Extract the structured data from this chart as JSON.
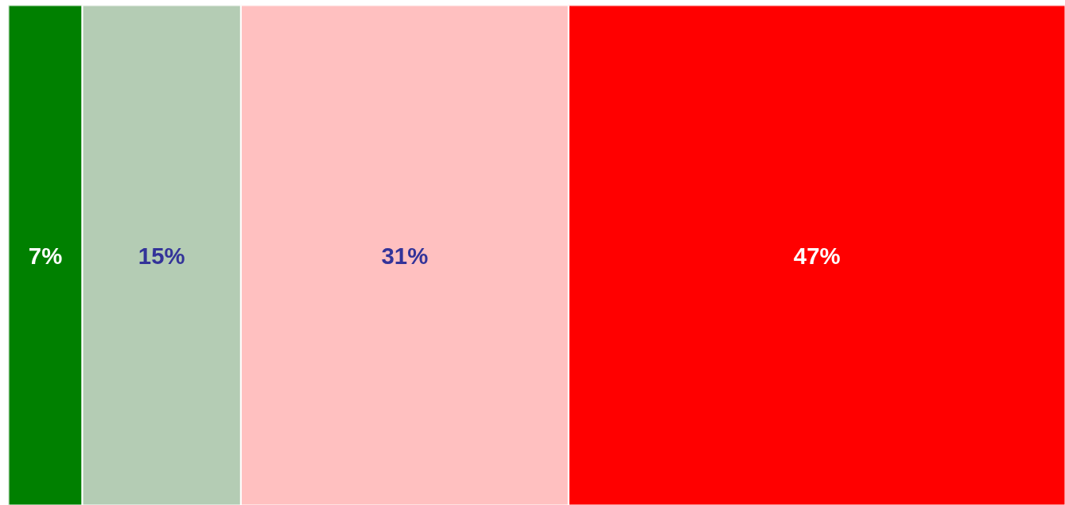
{
  "chart_data": {
    "type": "bar",
    "orientation": "horizontal",
    "stacked": true,
    "categories": [
      null
    ],
    "series": [
      {
        "color": "#008000",
        "values": [
          7
        ],
        "value_labels": [
          "7%"
        ]
      },
      {
        "color": "#b4ccb4",
        "values": [
          15
        ],
        "value_labels": [
          "15%"
        ]
      },
      {
        "color": "#ffc0c0",
        "values": [
          31
        ],
        "value_labels": [
          "31%"
        ]
      },
      {
        "color": "#ff0000",
        "values": [
          47
        ],
        "value_labels": [
          "47%"
        ]
      }
    ]
  }
}
